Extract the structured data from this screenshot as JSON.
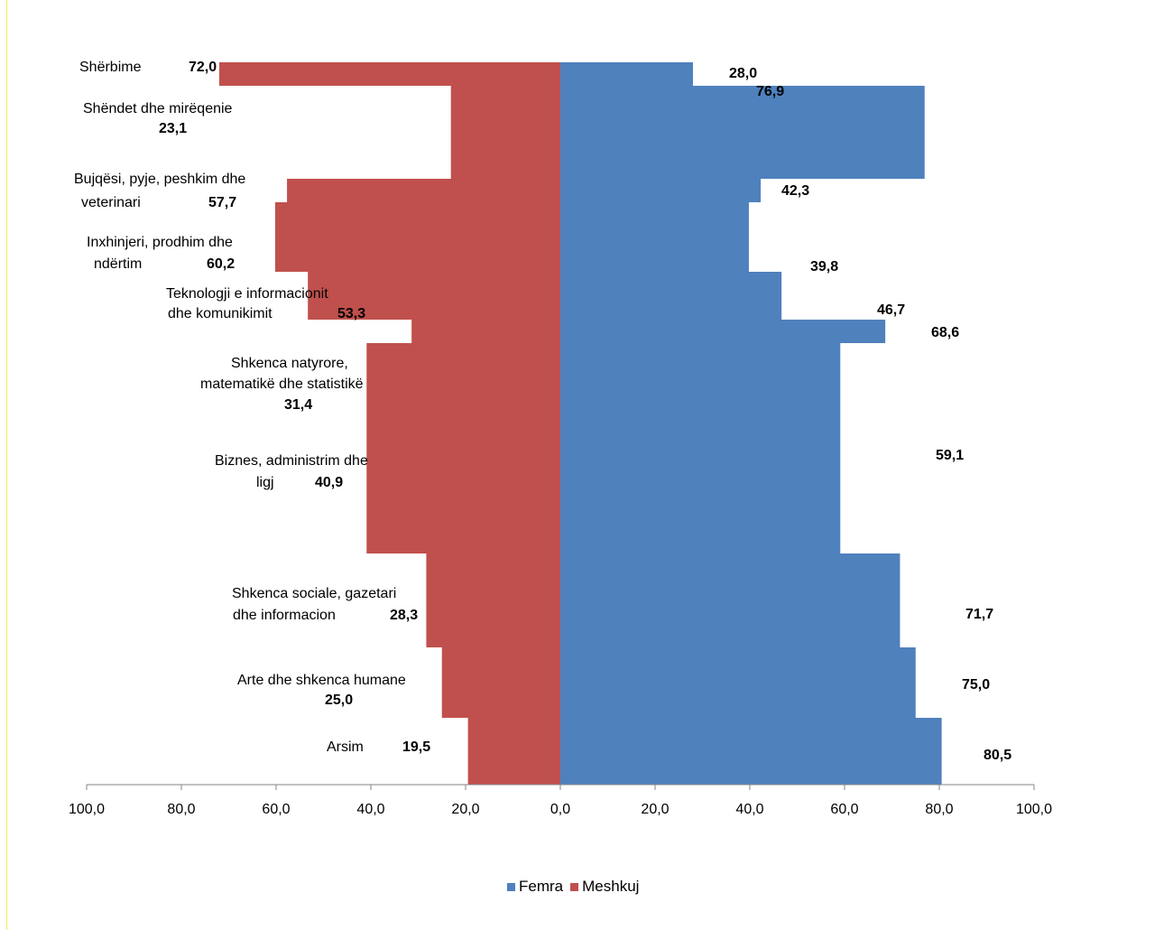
{
  "chart_data": {
    "type": "bar",
    "orientation": "horizontal-butterfly",
    "categories": [
      "Shërbime",
      "Shëndet dhe mirëqenie",
      "Bujqësi, pyje, peshkim dhe veterinari",
      "Inxhinjeri, prodhim dhe ndërtim",
      "Teknologji e  informacionit dhe komunikimit",
      "Shkenca natyrore, matematikë dhe statistikë",
      "Biznes, administrim dhe ligj",
      "Shkenca sociale, gazetari dhe informacion",
      "Arte dhe shkenca humane",
      "Arsim"
    ],
    "category_label_lines": [
      [
        "Shërbime"
      ],
      [
        "Shëndet dhe mirëqenie"
      ],
      [
        "Bujqësi, pyje, peshkim dhe",
        "veterinari"
      ],
      [
        "Inxhinjeri, prodhim dhe",
        "ndërtim"
      ],
      [
        "Teknologji e  informacionit",
        "dhe komunikimit"
      ],
      [
        "Shkenca natyrore,",
        "matematikë dhe statistikë"
      ],
      [
        "Biznes, administrim dhe",
        "ligj"
      ],
      [
        "Shkenca sociale, gazetari",
        "dhe informacion"
      ],
      [
        "Arte dhe shkenca humane"
      ],
      [
        "Arsim"
      ]
    ],
    "series": [
      {
        "name": "Femra",
        "color": "#4f81bd",
        "side": "right",
        "values": [
          28.0,
          76.9,
          42.3,
          39.8,
          46.7,
          68.6,
          59.1,
          71.7,
          75.0,
          80.5
        ],
        "labels": [
          "28,0",
          "76,9",
          "42,3",
          "39,8",
          "46,7",
          "68,6",
          "59,1",
          "71,7",
          "75,0",
          "80,5"
        ]
      },
      {
        "name": "Meshkuj",
        "color": "#c0504d",
        "side": "left",
        "values": [
          72.0,
          23.1,
          57.7,
          60.2,
          53.3,
          31.4,
          40.9,
          28.3,
          25.0,
          19.5
        ],
        "labels": [
          "72,0",
          "23,1",
          "57,7",
          "60,2",
          "53,3",
          "31,4",
          "40,9",
          "28,3",
          "25,0",
          "19,5"
        ]
      }
    ],
    "xlim": [
      -100,
      100
    ],
    "x_tick_labels": [
      "100,0",
      "80,0",
      "60,0",
      "40,0",
      "20,0",
      "0,0",
      "20,0",
      "40,0",
      "60,0",
      "80,0",
      "100,0"
    ],
    "legend": "bottom",
    "grid": false
  }
}
